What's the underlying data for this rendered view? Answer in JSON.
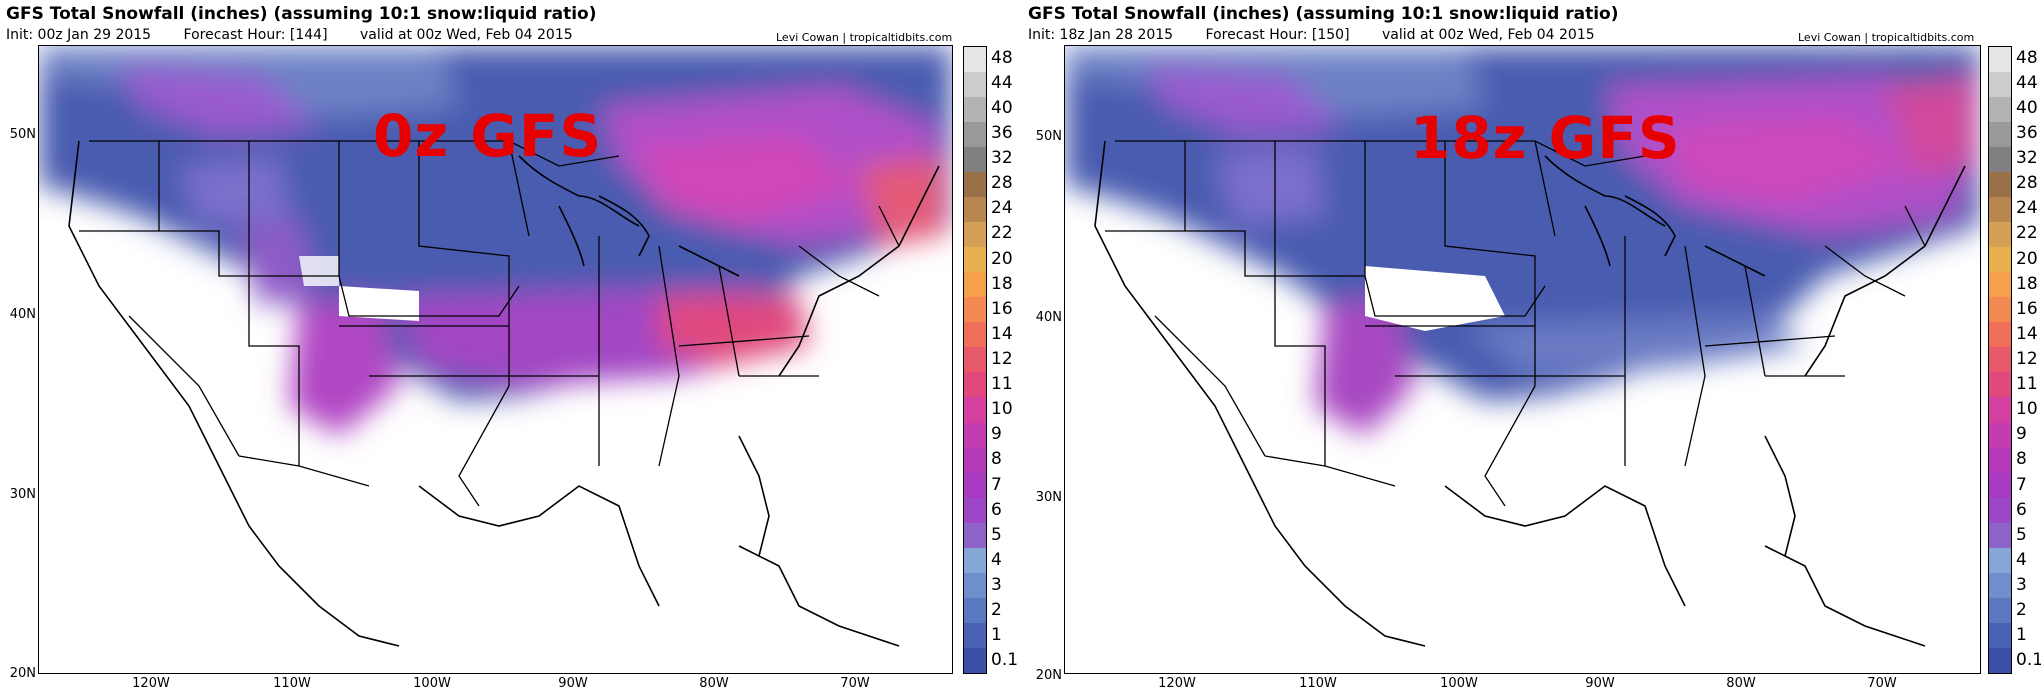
{
  "panels": [
    {
      "title": "GFS Total Snowfall (inches) (assuming 10:1 snow:liquid ratio)",
      "init": "Init: 00z Jan 29 2015",
      "forecast_hour": "Forecast Hour: [144]",
      "valid": "valid at 00z Wed, Feb 04 2015",
      "credit": "Levi Cowan | tropicaltidbits.com",
      "overlay_label": "0z GFS"
    },
    {
      "title": "GFS Total Snowfall (inches) (assuming 10:1 snow:liquid ratio)",
      "init": "Init: 18z Jan 28 2015",
      "forecast_hour": "Forecast Hour: [150]",
      "valid": "valid at 00z Wed, Feb 04 2015",
      "credit": "Levi Cowan | tropicaltidbits.com",
      "overlay_label": "18z GFS"
    }
  ],
  "lat_labels": [
    "50N",
    "40N",
    "30N",
    "20N"
  ],
  "lon_labels": [
    "120W",
    "110W",
    "100W",
    "90W",
    "80W",
    "70W"
  ],
  "colorbar": {
    "labels": [
      "0.1",
      "1",
      "2",
      "3",
      "4",
      "5",
      "6",
      "7",
      "8",
      "9",
      "10",
      "11",
      "12",
      "14",
      "16",
      "18",
      "20",
      "22",
      "24",
      "28",
      "32",
      "36",
      "40",
      "44",
      "48"
    ],
    "colors": [
      "#3b4fa8",
      "#4a62b4",
      "#5a78c0",
      "#6f8fcc",
      "#86a6d8",
      "#8e63c8",
      "#9b47c6",
      "#a73ac0",
      "#b53ab8",
      "#c43db0",
      "#d43fa0",
      "#e0487e",
      "#e85a6a",
      "#ef6f5a",
      "#f38a52",
      "#f4a04c",
      "#e9b050",
      "#d4a055",
      "#b88750",
      "#9a7048",
      "#808080",
      "#999999",
      "#b3b3b3",
      "#cccccc",
      "#e6e6e6"
    ]
  }
}
